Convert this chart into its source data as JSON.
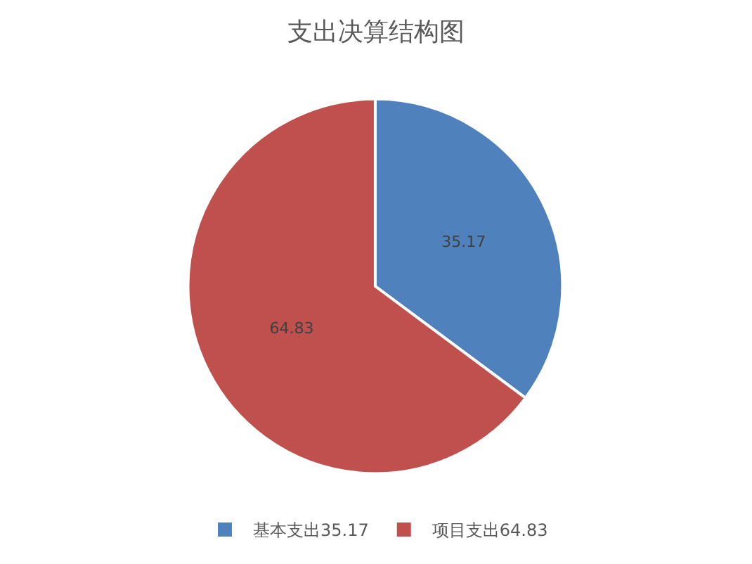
{
  "chart_data": {
    "type": "pie",
    "title": "支出决算结构图",
    "categories": [
      "基本支出35.17",
      "项目支出64.83"
    ],
    "values": [
      35.17,
      64.83
    ],
    "colors": [
      "#4f81bd",
      "#c0504d"
    ],
    "data_labels": true,
    "legend": "bottom"
  }
}
